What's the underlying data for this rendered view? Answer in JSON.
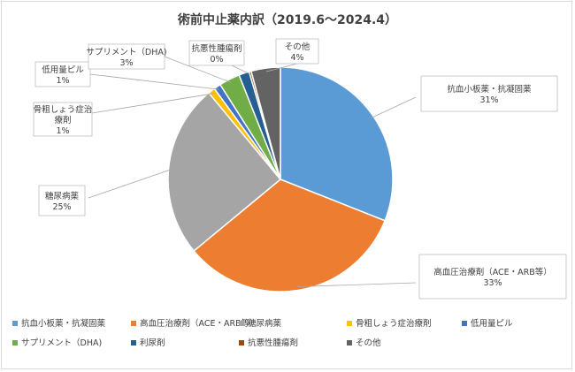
{
  "chart_data": {
    "type": "pie",
    "title": "術前中止薬内訳（2019.6〜2024.4）",
    "slices": [
      {
        "label": "抗血小板薬・抗凝固薬",
        "callout": "抗血小板薬・抗凝固薬",
        "pct_label": "31%",
        "value": 31,
        "color": "#5b9bd5"
      },
      {
        "label": "高血圧治療剤（ACE・ARB等）",
        "callout": "高血圧治療剤（ACE・ARB等）",
        "pct_label": "33%",
        "value": 33,
        "color": "#ed7d31"
      },
      {
        "label": "糖尿病薬",
        "callout": "糖尿病薬",
        "pct_label": "25%",
        "value": 25,
        "color": "#a5a5a5"
      },
      {
        "label": "骨粗しょう症治療剤",
        "callout": "骨粗しょう症治\n療剤",
        "pct_label": "1%",
        "value": 1,
        "color": "#ffc000"
      },
      {
        "label": "低用量ピル",
        "callout": "低用量ピル",
        "pct_label": "1%",
        "value": 1,
        "color": "#4472c4"
      },
      {
        "label": "サプリメント（DHA)",
        "callout": "サプリメント（DHA)",
        "pct_label": "3%",
        "value": 3,
        "color": "#70ad47"
      },
      {
        "label": "利尿剤",
        "callout": "",
        "pct_label": "",
        "value": 1.5,
        "color": "#255e91"
      },
      {
        "label": "抗悪性腫瘍剤",
        "callout": "抗悪性腫瘍剤",
        "pct_label": "0%",
        "value": 0.3,
        "color": "#9e480e"
      },
      {
        "label": "その他",
        "callout": "その他",
        "pct_label": "4%",
        "value": 4.2,
        "color": "#636363"
      }
    ],
    "legend_position": "bottom"
  }
}
